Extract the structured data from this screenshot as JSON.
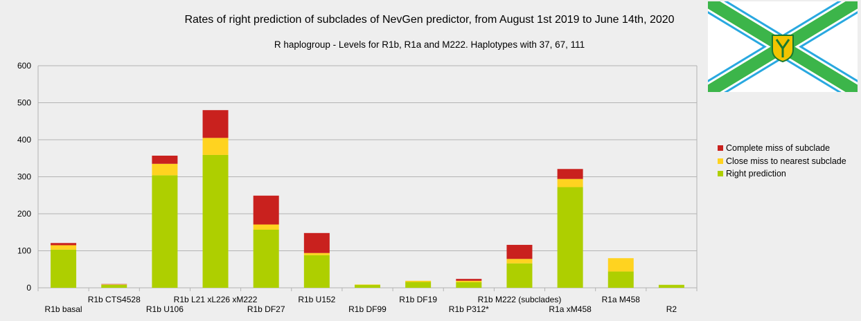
{
  "chart_data": {
    "type": "bar",
    "stacked": true,
    "title": "Rates of right prediction of subclades of NevGen predictor, from August 1st 2019 to June 14th, 2020",
    "subtitle": "R haplogroup - Levels for R1b, R1a and M222. Haplotypes with 37, 67, 111",
    "xlabel": "",
    "ylabel": "",
    "ylim": [
      0,
      600
    ],
    "yticks": [
      0,
      100,
      200,
      300,
      400,
      500,
      600
    ],
    "grid": true,
    "legend_position": "right",
    "categories": [
      "R1b basal",
      "R1b CTS4528",
      "R1b U106",
      "R1b L21 xL226 xM222",
      "R1b DF27",
      "R1b U152",
      "R1b DF99",
      "R1b DF19",
      "R1b P312*",
      "R1b M222 (subclades)",
      "R1a xM458",
      "R1a M458",
      "R2"
    ],
    "series": [
      {
        "name": "Right prediction",
        "color": "#aecf00",
        "values": [
          103,
          8,
          304,
          359,
          157,
          88,
          8,
          16,
          15,
          66,
          272,
          44,
          8
        ]
      },
      {
        "name": "Close miss to nearest subclade",
        "color": "#ffd320",
        "values": [
          12,
          1,
          31,
          46,
          14,
          6,
          1,
          3,
          4,
          12,
          22,
          36,
          0
        ]
      },
      {
        "name": "Complete miss of subclade",
        "color": "#c9211e",
        "values": [
          6,
          1,
          22,
          75,
          78,
          54,
          0,
          0,
          5,
          38,
          27,
          0,
          0
        ]
      }
    ]
  }
}
